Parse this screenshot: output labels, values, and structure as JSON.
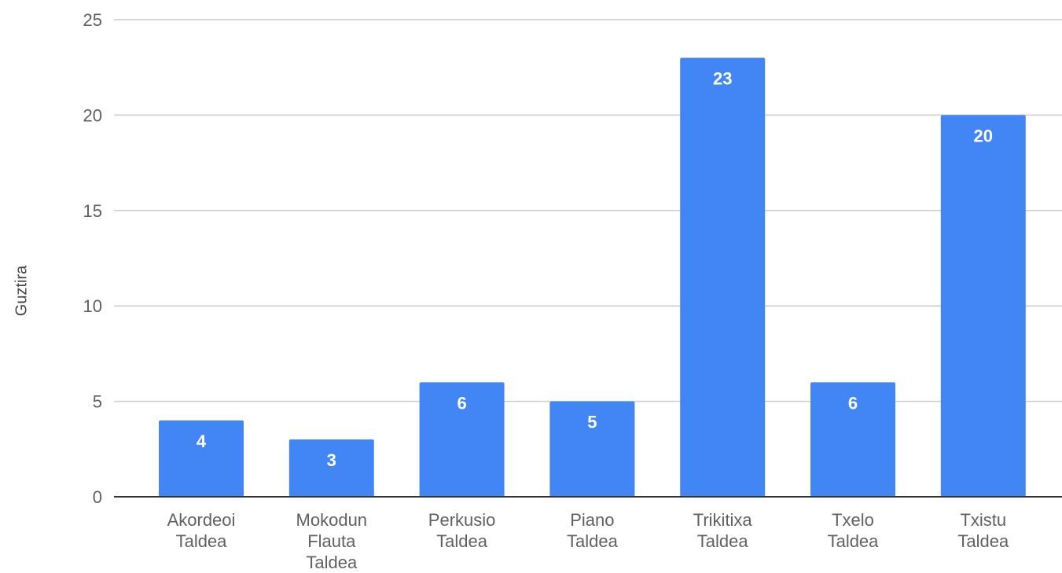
{
  "chart_data": {
    "type": "bar",
    "categories": [
      [
        "Akordeoi",
        "Taldea"
      ],
      [
        "Mokodun",
        "Flauta",
        "Taldea"
      ],
      [
        "Perkusio",
        "Taldea"
      ],
      [
        "Piano",
        "Taldea"
      ],
      [
        "Trikitixa",
        "Taldea"
      ],
      [
        "Txelo",
        "Taldea"
      ],
      [
        "Txistu",
        "Taldea"
      ]
    ],
    "values": [
      4,
      3,
      6,
      5,
      23,
      6,
      20
    ],
    "data_labels": [
      "4",
      "3",
      "6",
      "5",
      "23",
      "6",
      "20"
    ],
    "ylabel": "Guztira",
    "xlabel": "",
    "ylim": [
      0,
      25
    ],
    "yticks": [
      0,
      5,
      10,
      15,
      20,
      25
    ],
    "grid": true,
    "bar_color": "#4285f4",
    "label_color": "#ffffff",
    "grid_color": "#cccccc",
    "axis_color": "#333333"
  }
}
